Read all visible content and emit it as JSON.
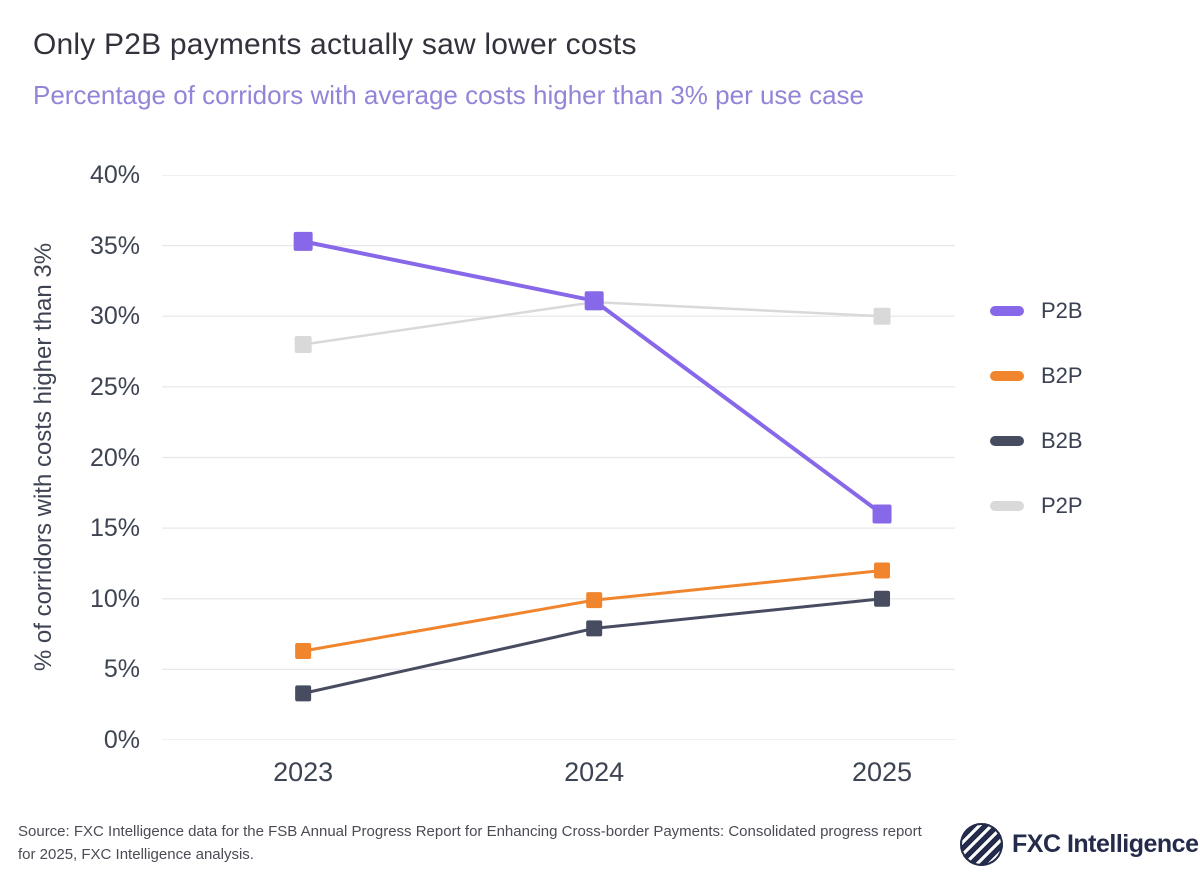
{
  "header": {
    "title": "Only P2B payments actually saw lower costs",
    "subtitle": "Percentage of corridors with average costs higher than 3% per use case"
  },
  "chart_data": {
    "type": "line",
    "categories": [
      "2023",
      "2024",
      "2025"
    ],
    "series": [
      {
        "name": "P2B",
        "values": [
          35.3,
          31.1,
          16.0
        ],
        "color": "#8768e8"
      },
      {
        "name": "B2P",
        "values": [
          6.3,
          9.9,
          12.0
        ],
        "color": "#f0852e"
      },
      {
        "name": "B2B",
        "values": [
          3.3,
          7.9,
          10.0
        ],
        "color": "#474c61"
      },
      {
        "name": "P2P",
        "values": [
          28.0,
          31.0,
          30.0
        ],
        "color": "#d9d9d9"
      }
    ],
    "title": "Only P2B payments actually saw lower costs",
    "xlabel": "",
    "ylabel": "% of corridors with costs higher than 3%",
    "ylim": [
      0,
      40
    ],
    "ytick_step": 5,
    "ytick_suffix": "%",
    "grid": true,
    "marker": "square",
    "legend_position": "right"
  },
  "footer": {
    "source": "Source: FXC Intelligence data for the FSB Annual Progress Report for Enhancing Cross-border Payments: Consolidated progress report for 2025, FXC Intelligence analysis.",
    "logo_text": "FXC Intelligence"
  }
}
